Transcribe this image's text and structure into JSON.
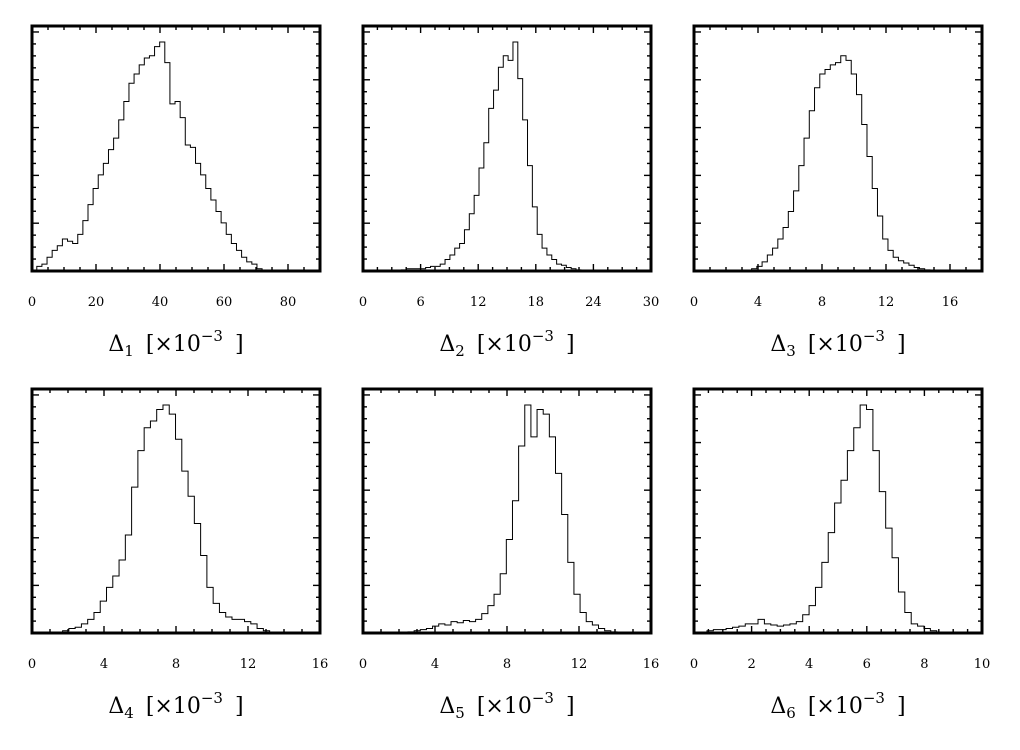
{
  "chart_data": [
    {
      "type": "histogram",
      "xlabel": {
        "symbol": "Δ",
        "sub": "1",
        "scale": "[×10",
        "exp": "−3",
        "close": "]"
      },
      "xticks": [
        0,
        20,
        40,
        60,
        80
      ],
      "xlim": [
        0,
        90
      ],
      "ylim": [
        0,
        1.0
      ],
      "bin_edges_range": [
        1.5,
        73.5
      ],
      "counts": [
        0.02,
        0.03,
        0.06,
        0.09,
        0.11,
        0.14,
        0.13,
        0.12,
        0.16,
        0.22,
        0.29,
        0.36,
        0.42,
        0.47,
        0.53,
        0.58,
        0.66,
        0.74,
        0.82,
        0.86,
        0.9,
        0.93,
        0.94,
        0.98,
        1.0,
        0.91,
        0.73,
        0.74,
        0.67,
        0.55,
        0.54,
        0.47,
        0.42,
        0.36,
        0.31,
        0.26,
        0.21,
        0.16,
        0.12,
        0.09,
        0.06,
        0.04,
        0.03,
        0.01,
        0.0
      ]
    },
    {
      "type": "histogram",
      "xlabel": {
        "symbol": "Δ",
        "sub": "2",
        "scale": "[×10",
        "exp": "−3",
        "close": "]"
      },
      "xticks": [
        0,
        6,
        12,
        18,
        24,
        30
      ],
      "xlim": [
        0,
        30
      ],
      "ylim": [
        0,
        1.0
      ],
      "bin_edges_range": [
        4.0,
        23.2
      ],
      "counts": [
        0.005,
        0.01,
        0.01,
        0.01,
        0.01,
        0.015,
        0.02,
        0.02,
        0.03,
        0.05,
        0.07,
        0.1,
        0.12,
        0.18,
        0.25,
        0.33,
        0.45,
        0.56,
        0.71,
        0.79,
        0.89,
        0.94,
        0.92,
        1.0,
        0.84,
        0.66,
        0.46,
        0.28,
        0.16,
        0.1,
        0.07,
        0.05,
        0.03,
        0.025,
        0.015,
        0.01,
        0.005,
        0.0
      ]
    },
    {
      "type": "histogram",
      "xlabel": {
        "symbol": "Δ",
        "sub": "3",
        "scale": "[×10",
        "exp": "−3",
        "close": "]"
      },
      "xticks": [
        0,
        4,
        8,
        12,
        16
      ],
      "xlim": [
        0,
        18
      ],
      "ylim": [
        0,
        1.0
      ],
      "bin_edges_range": [
        3.6,
        15.4
      ],
      "counts": [
        0.01,
        0.02,
        0.04,
        0.07,
        0.1,
        0.14,
        0.19,
        0.26,
        0.35,
        0.46,
        0.58,
        0.7,
        0.8,
        0.86,
        0.88,
        0.9,
        0.91,
        0.94,
        0.92,
        0.86,
        0.77,
        0.64,
        0.5,
        0.36,
        0.24,
        0.14,
        0.09,
        0.06,
        0.045,
        0.035,
        0.025,
        0.015,
        0.01,
        0.005,
        0.003,
        0.0
      ]
    },
    {
      "type": "histogram",
      "xlabel": {
        "symbol": "Δ",
        "sub": "4",
        "scale": "[×10",
        "exp": "−3",
        "close": "]"
      },
      "xticks": [
        0,
        4,
        8,
        12,
        16
      ],
      "xlim": [
        0,
        16
      ],
      "ylim": [
        0,
        1.0
      ],
      "bin_edges_range": [
        1.7,
        13.55
      ],
      "counts": [
        0.01,
        0.02,
        0.025,
        0.04,
        0.06,
        0.09,
        0.14,
        0.2,
        0.25,
        0.32,
        0.43,
        0.64,
        0.8,
        0.9,
        0.93,
        0.98,
        1.0,
        0.96,
        0.85,
        0.71,
        0.6,
        0.48,
        0.34,
        0.2,
        0.13,
        0.09,
        0.07,
        0.06,
        0.06,
        0.05,
        0.04,
        0.02,
        0.01,
        0.0
      ]
    },
    {
      "type": "histogram",
      "xlabel": {
        "symbol": "Δ",
        "sub": "5",
        "scale": "[×10",
        "exp": "−3",
        "close": "]"
      },
      "xticks": [
        0,
        4,
        8,
        12,
        16
      ],
      "xlim": [
        0,
        16
      ],
      "ylim": [
        0,
        1.0
      ],
      "bin_edges_range": [
        2.5,
        14.45
      ],
      "counts": [
        0.005,
        0.01,
        0.015,
        0.02,
        0.03,
        0.04,
        0.035,
        0.05,
        0.045,
        0.055,
        0.05,
        0.06,
        0.085,
        0.12,
        0.17,
        0.26,
        0.41,
        0.58,
        0.82,
        1.0,
        0.86,
        0.98,
        0.96,
        0.86,
        0.7,
        0.52,
        0.31,
        0.17,
        0.09,
        0.05,
        0.035,
        0.02,
        0.01,
        0.005,
        0.0
      ]
    },
    {
      "type": "histogram",
      "xlabel": {
        "symbol": "Δ",
        "sub": "6",
        "scale": "[×10",
        "exp": "−3",
        "close": "]"
      },
      "xticks": [
        0,
        2,
        4,
        6,
        8,
        10
      ],
      "xlim": [
        0,
        10
      ],
      "ylim": [
        0,
        1.0
      ],
      "bin_edges_range": [
        0.45,
        8.65
      ],
      "counts": [
        0.01,
        0.015,
        0.015,
        0.02,
        0.025,
        0.03,
        0.04,
        0.04,
        0.06,
        0.04,
        0.035,
        0.03,
        0.035,
        0.04,
        0.05,
        0.08,
        0.12,
        0.2,
        0.31,
        0.44,
        0.57,
        0.67,
        0.8,
        0.9,
        1.0,
        0.98,
        0.8,
        0.62,
        0.46,
        0.33,
        0.18,
        0.09,
        0.04,
        0.03,
        0.02,
        0.01,
        0.0
      ]
    }
  ]
}
